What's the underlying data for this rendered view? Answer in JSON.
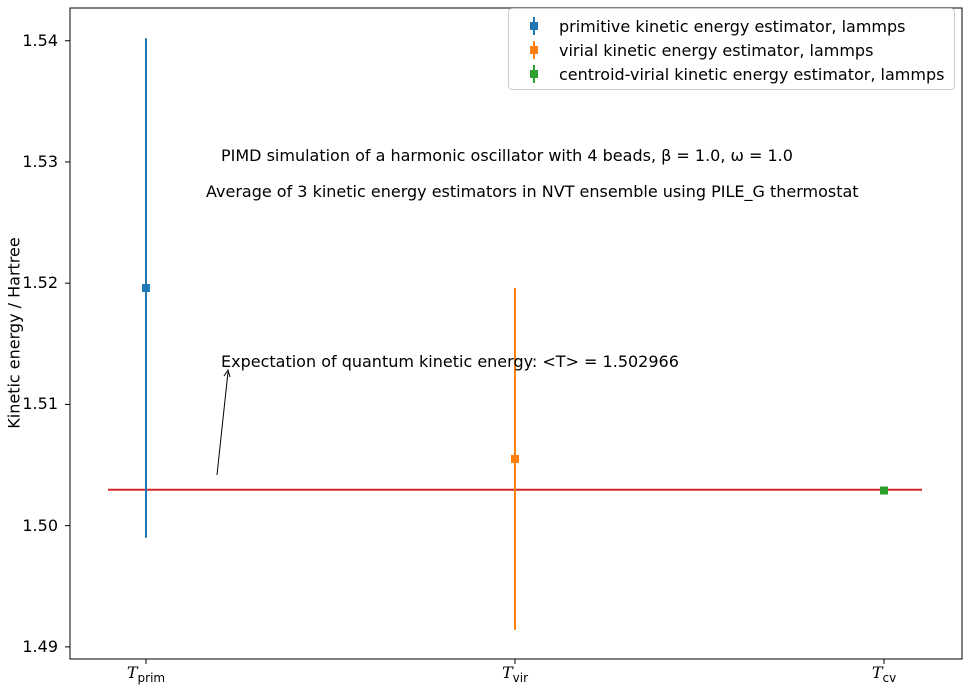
{
  "chart_data": {
    "type": "errorbar",
    "title_lines": [
      "PIMD simulation of a harmonic oscillator with 4 beads, β = 1.0, ω = 1.0",
      "Average of 3 kinetic energy estimators in NVT ensemble using PILE_G thermostat"
    ],
    "xlabel": "",
    "ylabel": "Kinetic energy / Hartree",
    "ylim": [
      1.489,
      1.5427
    ],
    "yticks": [
      "1.49",
      "1.50",
      "1.51",
      "1.52",
      "1.53",
      "1.54"
    ],
    "categories": [
      {
        "main": "T",
        "sub": "prim"
      },
      {
        "main": "T",
        "sub": "vir"
      },
      {
        "main": "T",
        "sub": "cv"
      }
    ],
    "series": [
      {
        "name": "primitive kinetic energy estimator, lammps",
        "color": "#1f77b4",
        "value": 1.5196,
        "error": 0.0206
      },
      {
        "name": "virial kinetic energy estimator, lammps",
        "color": "#ff7f0e",
        "value": 1.5055,
        "error": 0.0141
      },
      {
        "name": "centroid-virial kinetic energy estimator, lammps",
        "color": "#2ca02c",
        "value": 1.5029,
        "error": 0.0001
      }
    ],
    "reference_line": {
      "value": 1.502966,
      "color": "#d62728"
    },
    "annotation": "Expectation of quantum kinetic energy: <T> = 1.502966",
    "legend_position": "top-right",
    "grid": false
  }
}
